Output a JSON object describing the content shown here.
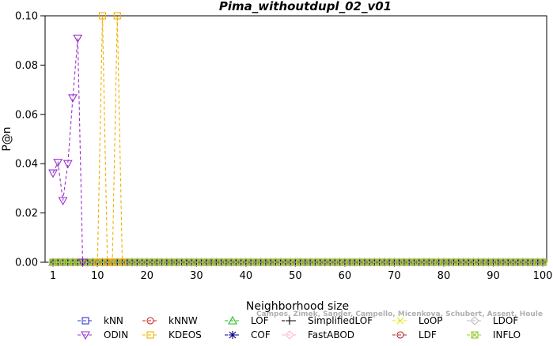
{
  "chart_data": {
    "type": "line",
    "title": "Pima_withoutdupl_02_v01",
    "xlabel": "Neighborhood size",
    "ylabel": "P@n",
    "xlim": [
      0,
      101
    ],
    "ylim": [
      0,
      0.1
    ],
    "xticks": [
      1,
      10,
      20,
      30,
      40,
      50,
      60,
      70,
      80,
      90,
      100
    ],
    "yticks": [
      0.0,
      0.02,
      0.04,
      0.06,
      0.08,
      0.1
    ],
    "ytick_labels": [
      "0.00",
      "0.02",
      "0.04",
      "0.06",
      "0.08",
      "0.10"
    ],
    "grid": false,
    "legend_position": "bottom",
    "series": [
      {
        "name": "kNN",
        "color": "#3333cc",
        "marker": "square",
        "x": [
          1,
          101
        ],
        "y": [
          0,
          0
        ]
      },
      {
        "name": "kNNW",
        "color": "#cc2222",
        "marker": "circle",
        "x": [
          1,
          101
        ],
        "y": [
          0,
          0
        ]
      },
      {
        "name": "LOF",
        "color": "#22bb22",
        "marker": "triangle-up",
        "x": [
          1,
          101
        ],
        "y": [
          0,
          0
        ]
      },
      {
        "name": "SimplifiedLOF",
        "color": "#000000",
        "marker": "plus",
        "x": [
          1,
          101
        ],
        "y": [
          0,
          0
        ]
      },
      {
        "name": "LoOP",
        "color": "#e6e600",
        "marker": "x",
        "x": [
          1,
          101
        ],
        "y": [
          0,
          0
        ]
      },
      {
        "name": "LDOF",
        "color": "#bbbbbb",
        "marker": "diamond",
        "x": [
          1,
          101
        ],
        "y": [
          0,
          0
        ]
      },
      {
        "name": "ODIN",
        "color": "#9933cc",
        "marker": "triangle-down",
        "x": [
          1,
          2,
          3,
          4,
          5,
          6,
          7,
          101
        ],
        "y": [
          0.0362,
          0.0405,
          0.025,
          0.04,
          0.0667,
          0.0909,
          0,
          0
        ]
      },
      {
        "name": "KDEOS",
        "color": "#f0b000",
        "marker": "square",
        "x": [
          10,
          11,
          12,
          13,
          14,
          15
        ],
        "y": [
          0,
          0.1,
          0,
          0,
          0.1,
          0
        ]
      },
      {
        "name": "COF",
        "color": "#000080",
        "marker": "asterisk",
        "x": [
          1,
          101
        ],
        "y": [
          0,
          0
        ]
      },
      {
        "name": "FastABOD",
        "color": "#ffb6c1",
        "marker": "diamond",
        "x": [
          1,
          101
        ],
        "y": [
          0,
          0
        ]
      },
      {
        "name": "LDF",
        "color": "#b22222",
        "marker": "circle",
        "x": [
          1,
          101
        ],
        "y": [
          0,
          0
        ]
      },
      {
        "name": "INFLO",
        "color": "#99cc33",
        "marker": "square-x",
        "x": [
          1,
          101
        ],
        "y": [
          0,
          0
        ]
      }
    ]
  },
  "watermark": "Campos, Zimek, Sander, Campello, Micenkova, Schubert, Assent, Houle"
}
